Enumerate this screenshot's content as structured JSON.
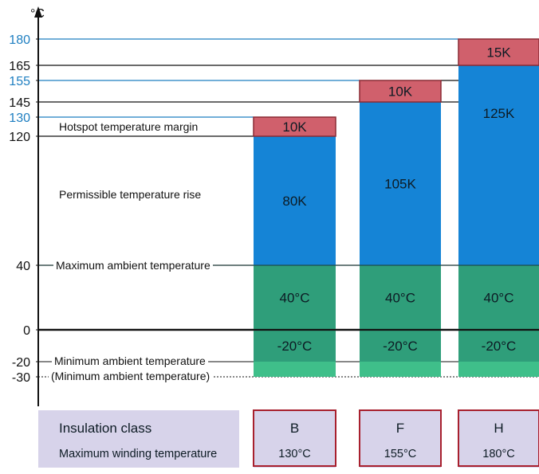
{
  "chart_data": {
    "type": "bar",
    "stacked": true,
    "y_unit": "°C",
    "ylim": [
      -30,
      180
    ],
    "yticks": [
      {
        "value": 180,
        "label": "180",
        "color": "#1f7fc1"
      },
      {
        "value": 165,
        "label": "165",
        "color": "#111111"
      },
      {
        "value": 155,
        "label": "155",
        "color": "#1f7fc1"
      },
      {
        "value": 145,
        "label": "145",
        "color": "#111111"
      },
      {
        "value": 130,
        "label": "130",
        "color": "#1f7fc1"
      },
      {
        "value": 120,
        "label": "120",
        "color": "#111111"
      },
      {
        "value": 40,
        "label": "40",
        "color": "#111111"
      },
      {
        "value": 0,
        "label": "0",
        "color": "#111111"
      },
      {
        "value": -20,
        "label": "-20",
        "color": "#111111"
      },
      {
        "value": -30,
        "label": "-30",
        "color": "#111111"
      }
    ],
    "annotations": [
      {
        "text": "Hotspot temperature margin",
        "value": 120
      },
      {
        "text": "Permissible temperature rise",
        "value": 80
      },
      {
        "text": "Maximum ambient temperature",
        "value": 40
      },
      {
        "text": "Minimum ambient temperature",
        "value": -20
      },
      {
        "text": "(Minimum ambient temperature)",
        "value": -30
      }
    ],
    "categories": [
      "B",
      "F",
      "H"
    ],
    "series": [
      {
        "name": "Minimum ambient temperature",
        "from": [
          -30,
          -30,
          -30
        ],
        "to": [
          -20,
          -20,
          -20
        ],
        "color": "#3fbf8a",
        "labels": [
          "",
          "",
          ""
        ]
      },
      {
        "name": "-20°C",
        "from": [
          -20,
          -20,
          -20
        ],
        "to": [
          0,
          0,
          0
        ],
        "color": "#2f9e7a",
        "labels": [
          "-20°C",
          "-20°C",
          "-20°C"
        ]
      },
      {
        "name": "40°C",
        "from": [
          0,
          0,
          0
        ],
        "to": [
          40,
          40,
          40
        ],
        "color": "#2f9e7a",
        "labels": [
          "40°C",
          "40°C",
          "40°C"
        ]
      },
      {
        "name": "Permissible temperature rise",
        "from": [
          40,
          40,
          40
        ],
        "to": [
          120,
          145,
          165
        ],
        "color": "#1584d6",
        "labels": [
          "80K",
          "105K",
          "125K"
        ]
      },
      {
        "name": "Hotspot temperature margin",
        "from": [
          120,
          145,
          165
        ],
        "to": [
          130,
          155,
          180
        ],
        "color": "#d0606c",
        "labels": [
          "10K",
          "10K",
          "15K"
        ]
      }
    ],
    "legend": "none",
    "grid": false
  },
  "table": {
    "row1_label": "Insulation class",
    "row2_label": "Maximum winding temperature",
    "classes": [
      "B",
      "F",
      "H"
    ],
    "max_temps": [
      "130°C",
      "155°C",
      "180°C"
    ]
  }
}
